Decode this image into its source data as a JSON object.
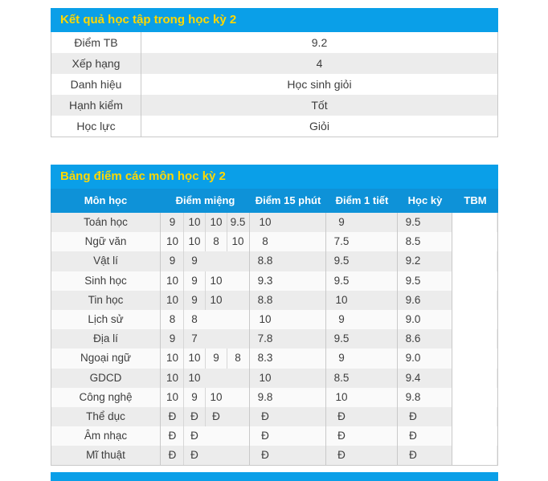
{
  "colors": {
    "title_bar_blue": "#0a9fe8",
    "column_header_blue": "#0e92d8",
    "title_text_yellow": "#ffd800",
    "stripe_gray": "#ececec",
    "border_gray": "#c9c9c9",
    "body_text": "#3d3d3d"
  },
  "summary_table": {
    "title": "Kết quả học tập trong học kỳ 2",
    "rows": [
      {
        "label": "Điểm TB",
        "value": "9.2"
      },
      {
        "label": "Xếp hạng",
        "value": "4"
      },
      {
        "label": "Danh hiệu",
        "value": "Học sinh giỏi"
      },
      {
        "label": "Hạnh kiểm",
        "value": "Tốt"
      },
      {
        "label": "Học lực",
        "value": "Giỏi"
      }
    ]
  },
  "scores_table": {
    "title": "Bảng điểm các môn học kỳ 2",
    "columns": [
      "Môn học",
      "Điểm miệng",
      "Điểm 15 phút",
      "Điểm 1 tiết",
      "Học kỳ",
      "TBM"
    ],
    "rows": [
      {
        "subject": "Toán học",
        "oral": [
          "9",
          "10",
          "10",
          "9.5"
        ],
        "m15": "10",
        "t1": "9",
        "hk": "9.5",
        "tbm": ""
      },
      {
        "subject": "Ngữ văn",
        "oral": [
          "10",
          "10",
          "8",
          "10"
        ],
        "m15": "8",
        "t1": "7.5",
        "hk": "8.5",
        "tbm": ""
      },
      {
        "subject": "Vật lí",
        "oral": [
          "9",
          "9"
        ],
        "m15": "8.8",
        "t1": "9.5",
        "hk": "9.2",
        "tbm": ""
      },
      {
        "subject": "Sinh học",
        "oral": [
          "10",
          "9",
          "10"
        ],
        "m15": "9.3",
        "t1": "9.5",
        "hk": "9.5",
        "tbm": ""
      },
      {
        "subject": "Tin học",
        "oral": [
          "10",
          "9",
          "10"
        ],
        "m15": "8.8",
        "t1": "10",
        "hk": "9.6",
        "tbm": ""
      },
      {
        "subject": "Lịch sử",
        "oral": [
          "8",
          "8"
        ],
        "m15": "10",
        "t1": "9",
        "hk": "9.0",
        "tbm": ""
      },
      {
        "subject": "Địa lí",
        "oral": [
          "9",
          "7"
        ],
        "m15": "7.8",
        "t1": "9.5",
        "hk": "8.6",
        "tbm": ""
      },
      {
        "subject": "Ngoại ngữ",
        "oral": [
          "10",
          "10",
          "9",
          "8"
        ],
        "m15": "8.3",
        "t1": "9",
        "hk": "9.0",
        "tbm": ""
      },
      {
        "subject": "GDCD",
        "oral": [
          "10",
          "10"
        ],
        "m15": "10",
        "t1": "8.5",
        "hk": "9.4",
        "tbm": ""
      },
      {
        "subject": "Công nghệ",
        "oral": [
          "10",
          "9",
          "10"
        ],
        "m15": "9.8",
        "t1": "10",
        "hk": "9.8",
        "tbm": ""
      },
      {
        "subject": "Thể dục",
        "oral": [
          "Đ",
          "Đ",
          "Đ"
        ],
        "m15": "Đ",
        "t1": "Đ",
        "hk": "Đ",
        "tbm": ""
      },
      {
        "subject": "Âm nhạc",
        "oral": [
          "Đ",
          "Đ"
        ],
        "m15": "Đ",
        "t1": "Đ",
        "hk": "Đ",
        "tbm": ""
      },
      {
        "subject": "Mĩ thuật",
        "oral": [
          "Đ",
          "Đ"
        ],
        "m15": "Đ",
        "t1": "Đ",
        "hk": "Đ",
        "tbm": ""
      }
    ]
  },
  "next_table_bar": {
    "visible": true
  }
}
